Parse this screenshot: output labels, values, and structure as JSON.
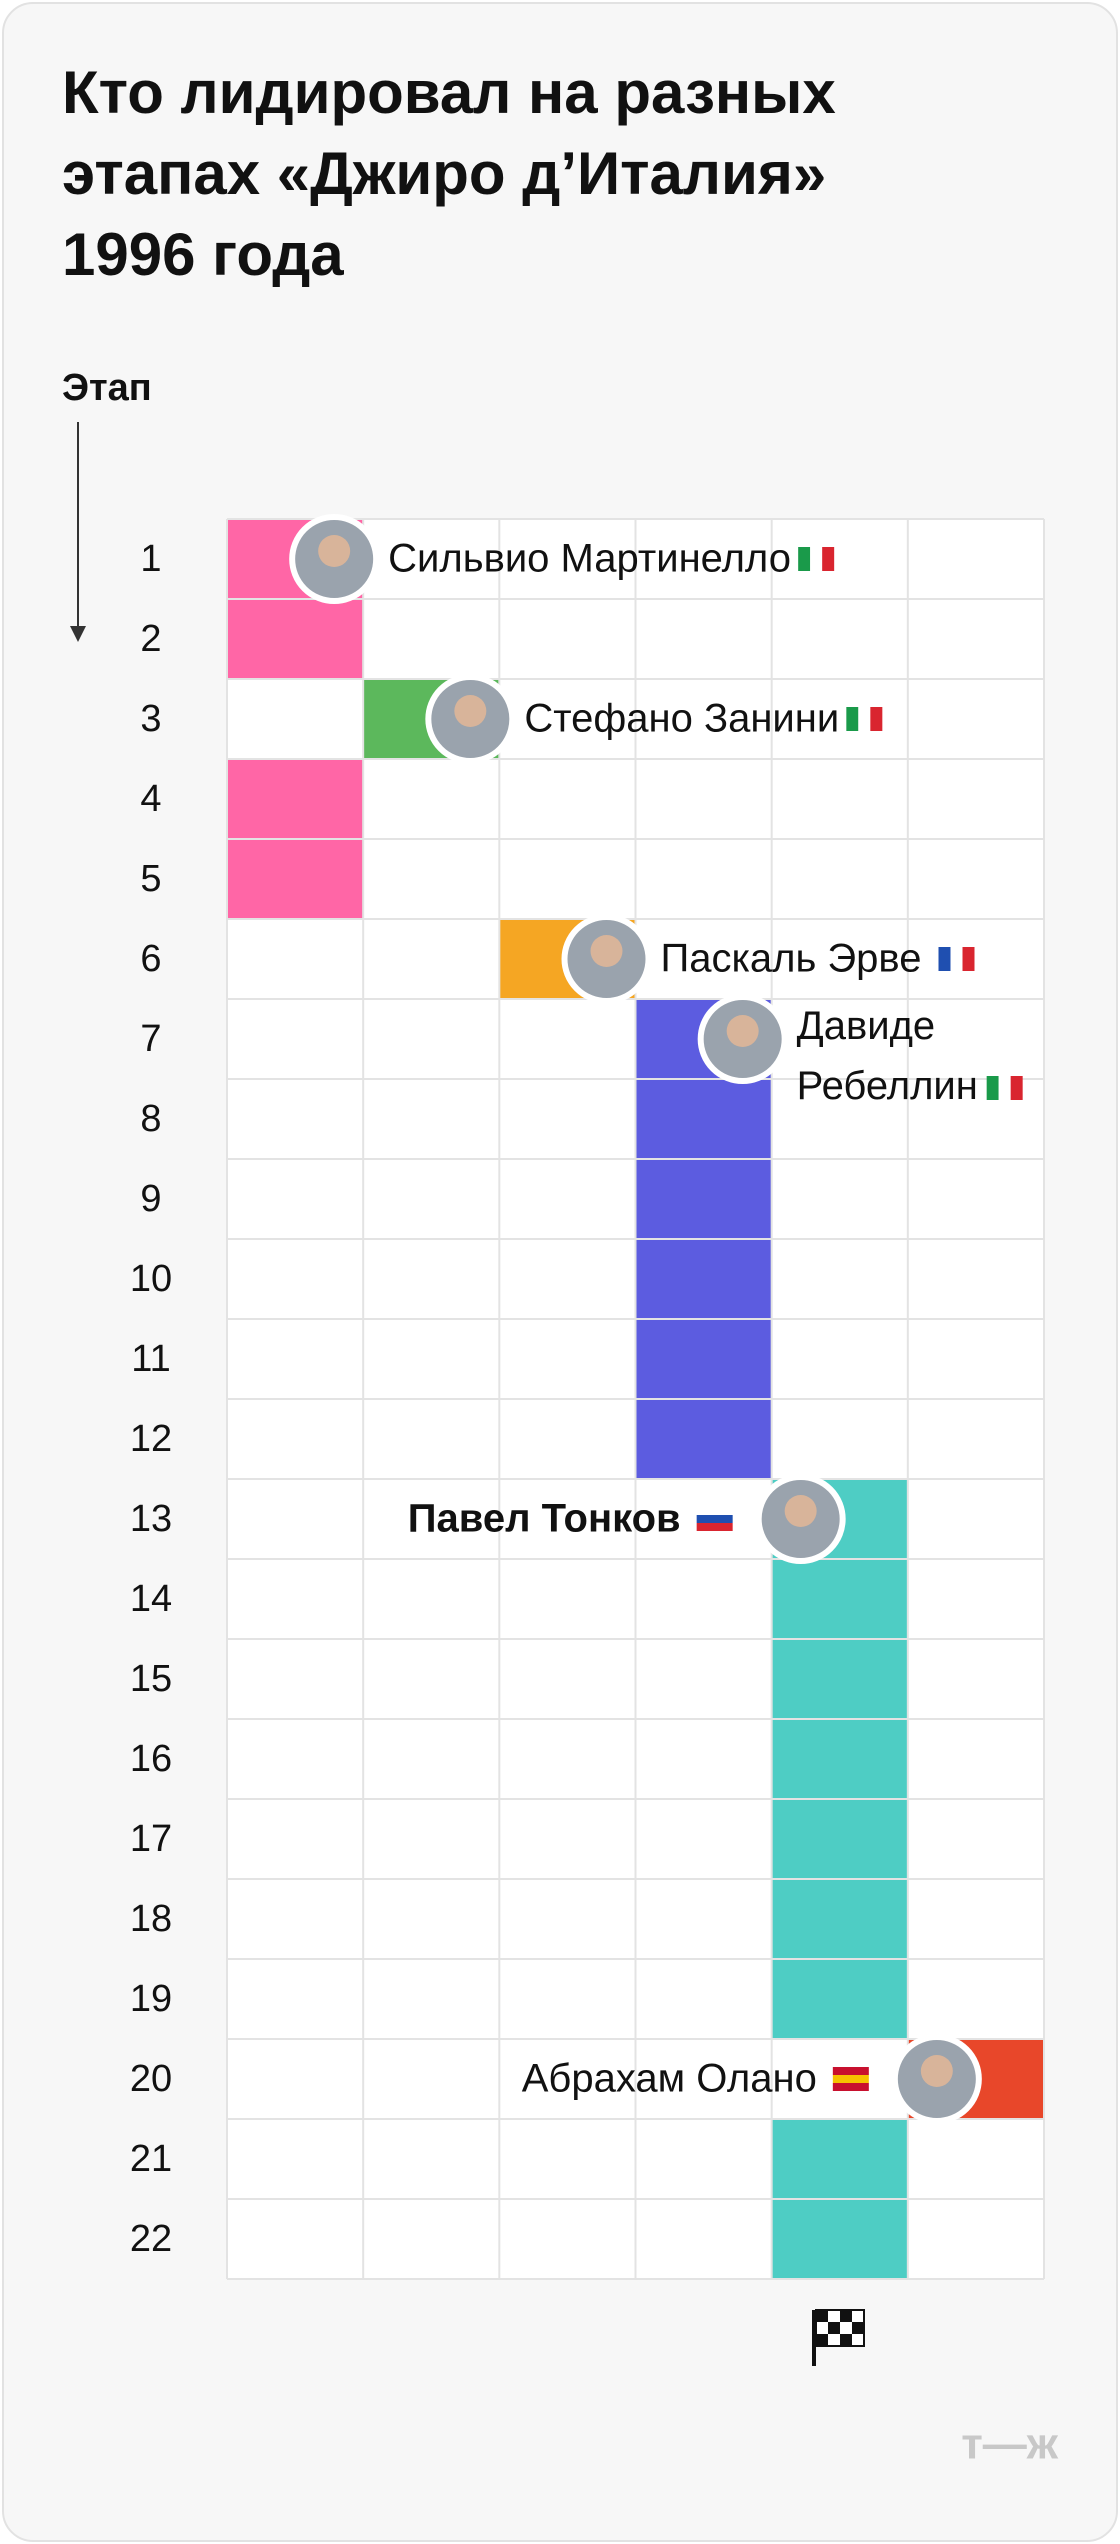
{
  "title_lines": [
    "Кто лидировал на разных",
    "этапах «Джиро д’Италия»",
    "1996 года"
  ],
  "axis_label": "Этап",
  "stages": [
    1,
    2,
    3,
    4,
    5,
    6,
    7,
    8,
    9,
    10,
    11,
    12,
    13,
    14,
    15,
    16,
    17,
    18,
    19,
    20,
    21,
    22
  ],
  "leaders": [
    {
      "name": "Сильвио Мартинелло",
      "color": "#ff66a6"
    },
    {
      "name": "Стефано Занини",
      "color": "#5cb85c"
    },
    {
      "name": "Паскаль Эрве",
      "color": "#f5a623"
    },
    {
      "name": "Давиде Ребеллин",
      "color": "#5c5ce0"
    },
    {
      "name": "Павел Тонков",
      "color": "#4ecdc4"
    },
    {
      "name": "Абрахам Олано",
      "color": "#e8472a"
    }
  ],
  "stage_leader": [
    0,
    0,
    1,
    0,
    0,
    2,
    3,
    3,
    3,
    3,
    3,
    3,
    4,
    4,
    4,
    4,
    4,
    4,
    4,
    5,
    4,
    4
  ],
  "logo": "т—ж"
}
